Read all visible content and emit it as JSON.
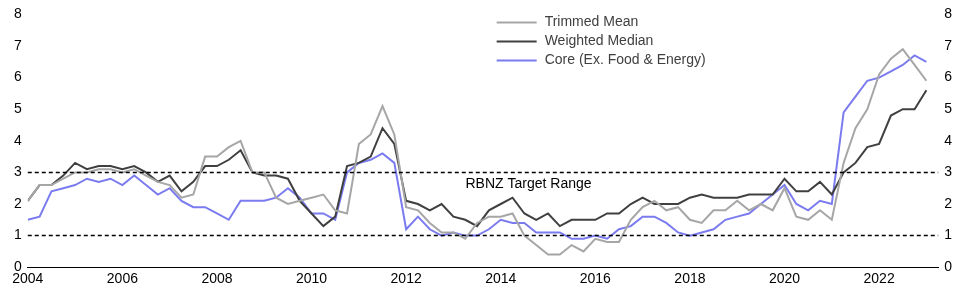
{
  "chart_data": {
    "type": "line",
    "x": [
      2004,
      2004.25,
      2004.5,
      2004.75,
      2005,
      2005.25,
      2005.5,
      2005.75,
      2006,
      2006.25,
      2006.5,
      2006.75,
      2007,
      2007.25,
      2007.5,
      2007.75,
      2008,
      2008.25,
      2008.5,
      2008.75,
      2009,
      2009.25,
      2009.5,
      2009.75,
      2010,
      2010.25,
      2010.5,
      2010.75,
      2011,
      2011.25,
      2011.5,
      2011.75,
      2012,
      2012.25,
      2012.5,
      2012.75,
      2013,
      2013.25,
      2013.5,
      2013.75,
      2014,
      2014.25,
      2014.5,
      2014.75,
      2015,
      2015.25,
      2015.5,
      2015.75,
      2016,
      2016.25,
      2016.5,
      2016.75,
      2017,
      2017.25,
      2017.5,
      2017.75,
      2018,
      2018.25,
      2018.5,
      2018.75,
      2019,
      2019.25,
      2019.5,
      2019.75,
      2020,
      2020.25,
      2020.5,
      2020.75,
      2021,
      2021.25,
      2021.5,
      2021.75,
      2022,
      2022.25,
      2022.5,
      2022.75,
      2023
    ],
    "series": [
      {
        "name": "Trimmed Mean",
        "color": "#a6a6a6",
        "values": [
          2.1,
          2.6,
          2.6,
          2.8,
          3.0,
          3.0,
          3.1,
          3.1,
          3.0,
          3.1,
          2.9,
          2.7,
          2.6,
          2.2,
          2.3,
          3.5,
          3.5,
          3.8,
          4.0,
          3.0,
          3.0,
          2.2,
          2.0,
          2.1,
          2.2,
          2.3,
          1.8,
          1.7,
          3.9,
          4.2,
          5.1,
          4.2,
          1.9,
          1.8,
          1.4,
          1.1,
          1.1,
          0.9,
          1.4,
          1.6,
          1.6,
          1.7,
          1.0,
          0.7,
          0.4,
          0.4,
          0.7,
          0.5,
          0.9,
          0.8,
          0.8,
          1.5,
          1.9,
          2.1,
          1.8,
          1.9,
          1.5,
          1.4,
          1.8,
          1.8,
          2.1,
          1.8,
          2.0,
          1.8,
          2.5,
          1.6,
          1.5,
          1.8,
          1.5,
          3.3,
          4.4,
          5.0,
          6.1,
          6.6,
          6.9,
          6.4,
          5.9
        ]
      },
      {
        "name": "Weighted Median",
        "color": "#404040",
        "values": [
          2.1,
          2.6,
          2.6,
          2.9,
          3.3,
          3.1,
          3.2,
          3.2,
          3.1,
          3.2,
          3.0,
          2.7,
          2.9,
          2.4,
          2.7,
          3.2,
          3.2,
          3.4,
          3.7,
          3.0,
          2.9,
          2.9,
          2.8,
          2.1,
          1.7,
          1.3,
          1.6,
          3.2,
          3.3,
          3.5,
          4.4,
          3.9,
          2.1,
          2.0,
          1.8,
          2.0,
          1.6,
          1.5,
          1.3,
          1.8,
          2.0,
          2.2,
          1.7,
          1.5,
          1.7,
          1.3,
          1.5,
          1.5,
          1.5,
          1.7,
          1.7,
          2.0,
          2.2,
          2.0,
          2.0,
          2.0,
          2.2,
          2.3,
          2.2,
          2.2,
          2.2,
          2.3,
          2.3,
          2.3,
          2.8,
          2.4,
          2.4,
          2.7,
          2.3,
          3.0,
          3.3,
          3.8,
          3.9,
          4.8,
          5.0,
          5.0,
          5.6
        ]
      },
      {
        "name": "Core (Ex. Food & Energy)",
        "color": "#7b7bf0",
        "values": [
          1.5,
          1.6,
          2.4,
          2.5,
          2.6,
          2.8,
          2.7,
          2.8,
          2.6,
          2.9,
          2.6,
          2.3,
          2.5,
          2.1,
          1.9,
          1.9,
          1.7,
          1.5,
          2.1,
          2.1,
          2.1,
          2.2,
          2.5,
          2.2,
          1.7,
          1.7,
          1.5,
          3.0,
          3.3,
          3.4,
          3.6,
          3.3,
          1.2,
          1.6,
          1.2,
          1.0,
          1.1,
          1.0,
          1.0,
          1.2,
          1.5,
          1.4,
          1.4,
          1.1,
          1.1,
          1.1,
          0.9,
          0.9,
          1.0,
          0.9,
          1.2,
          1.3,
          1.6,
          1.6,
          1.4,
          1.1,
          1.0,
          1.1,
          1.2,
          1.5,
          1.6,
          1.7,
          2.0,
          2.3,
          2.6,
          2.0,
          1.8,
          2.1,
          2.0,
          4.9,
          5.4,
          5.9,
          6.0,
          6.2,
          6.4,
          6.7,
          6.5
        ]
      }
    ],
    "xlim": [
      2004,
      2023.25
    ],
    "xticks": [
      2004,
      2006,
      2008,
      2010,
      2012,
      2014,
      2016,
      2018,
      2020,
      2022
    ],
    "ylim": [
      0,
      8
    ],
    "yticks": [
      0,
      1,
      2,
      3,
      4,
      5,
      6,
      7,
      8
    ],
    "y2lim": [
      0,
      8
    ],
    "y2ticks": [
      0,
      1,
      2,
      3,
      4,
      5,
      6,
      7,
      8
    ],
    "target_range": [
      1,
      3
    ],
    "annotations": [
      "RBNZ Target Range"
    ],
    "legend": "top",
    "grid": false
  }
}
